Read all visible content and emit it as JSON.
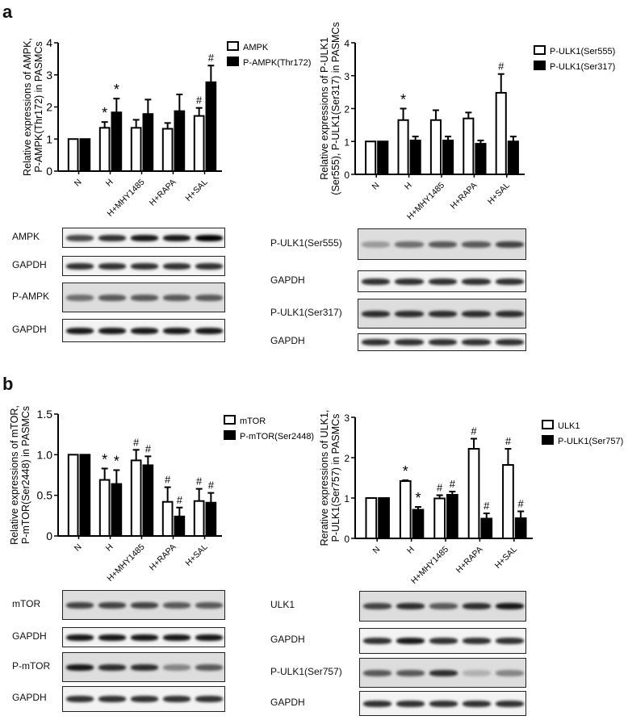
{
  "panels": {
    "a": "a",
    "b": "b"
  },
  "chart_data": [
    {
      "id": "a-left",
      "type": "bar",
      "ylabel": [
        "Relative expressions of AMPK,",
        "P-AMPK(Thr172) in PASMCs"
      ],
      "ylim": [
        0,
        4
      ],
      "yticks": [
        0,
        1,
        2,
        3,
        4
      ],
      "ytick_labels": [
        "0",
        "1",
        "2",
        "3",
        "4"
      ],
      "categories": [
        "N",
        "H",
        "H+MHY1485",
        "H+RAPA",
        "H+SAL"
      ],
      "series": [
        {
          "name": "AMPK",
          "fill": "#ffffff",
          "values": [
            1,
            1.35,
            1.35,
            1.32,
            1.72
          ],
          "errors": [
            0,
            0.18,
            0.25,
            0.18,
            0.25
          ],
          "annotations": [
            "",
            "*",
            "",
            "",
            "#"
          ]
        },
        {
          "name": "P-AMPK(Thr172)",
          "fill": "#000000",
          "values": [
            1,
            1.83,
            1.78,
            1.87,
            2.77
          ],
          "errors": [
            0,
            0.43,
            0.45,
            0.52,
            0.52
          ],
          "annotations": [
            "",
            "*",
            "",
            "",
            "#"
          ]
        }
      ]
    },
    {
      "id": "a-right",
      "type": "bar",
      "ylabel": [
        "Relative expressions of P-ULK1",
        "(Ser555), P-ULK1(Ser317) in PASMCs"
      ],
      "ylim": [
        0,
        4
      ],
      "yticks": [
        0,
        1,
        2,
        3,
        4
      ],
      "ytick_labels": [
        "0",
        "1",
        "2",
        "3",
        "4"
      ],
      "categories": [
        "N",
        "H",
        "H+MHY1485",
        "H+RAPA",
        "H+SAL"
      ],
      "series": [
        {
          "name": "P-ULK1(Ser555)",
          "fill": "#ffffff",
          "values": [
            1,
            1.65,
            1.65,
            1.7,
            2.48
          ],
          "errors": [
            0,
            0.35,
            0.3,
            0.18,
            0.57
          ],
          "annotations": [
            "",
            "*",
            "",
            "",
            "#"
          ]
        },
        {
          "name": "P-ULK1(Ser317)",
          "fill": "#000000",
          "values": [
            1,
            1.03,
            1.03,
            0.93,
            1.0
          ],
          "errors": [
            0,
            0.12,
            0.12,
            0.1,
            0.15
          ],
          "annotations": [
            "",
            "",
            "",
            "",
            ""
          ]
        }
      ]
    },
    {
      "id": "b-left",
      "type": "bar",
      "ylabel": [
        "Relative expressions of mTOR,",
        "P-mTOR(Ser2448) in PASMCs"
      ],
      "ylim": [
        0,
        1.5
      ],
      "yticks": [
        0,
        0.5,
        1.0,
        1.5
      ],
      "ytick_labels": [
        "0",
        "0.5",
        "1.0",
        "1.5"
      ],
      "categories": [
        "N",
        "H",
        "H+MHY1485",
        "H+RAPA",
        "H+SAL"
      ],
      "series": [
        {
          "name": "mTOR",
          "fill": "#ffffff",
          "values": [
            1,
            0.69,
            0.93,
            0.42,
            0.43
          ],
          "errors": [
            0,
            0.14,
            0.13,
            0.18,
            0.15
          ],
          "annotations": [
            "",
            "*",
            "#",
            "#",
            "#"
          ]
        },
        {
          "name": "P-mTOR(Ser2448)",
          "fill": "#000000",
          "values": [
            1,
            0.64,
            0.87,
            0.24,
            0.41
          ],
          "errors": [
            0,
            0.17,
            0.11,
            0.11,
            0.12
          ],
          "annotations": [
            "",
            "*",
            "#",
            "#",
            "#"
          ]
        }
      ]
    },
    {
      "id": "b-right",
      "type": "bar",
      "ylabel": [
        "Rerative expressions of ULK1,",
        "P-ULK1(Ser757) in PASMCs"
      ],
      "ylim": [
        0,
        3
      ],
      "yticks": [
        0,
        1,
        2,
        3
      ],
      "ytick_labels": [
        "0",
        "1",
        "2",
        "3"
      ],
      "categories": [
        "N",
        "H",
        "H+MHY1485",
        "H+RAPA",
        "H+SAL"
      ],
      "series": [
        {
          "name": "ULK1",
          "fill": "#ffffff",
          "values": [
            1,
            1.42,
            0.99,
            2.22,
            1.82
          ],
          "errors": [
            0,
            0.02,
            0.08,
            0.25,
            0.4
          ],
          "annotations": [
            "",
            "*",
            "#",
            "#",
            "#"
          ]
        },
        {
          "name": "P-ULK1(Ser757)",
          "fill": "#000000",
          "values": [
            1,
            0.71,
            1.08,
            0.49,
            0.5
          ],
          "errors": [
            0,
            0.07,
            0.08,
            0.13,
            0.17
          ],
          "annotations": [
            "",
            "*",
            "#",
            "#",
            "#"
          ]
        }
      ]
    }
  ],
  "blots": [
    {
      "label": "AMPK"
    },
    {
      "label": "GAPDH"
    },
    {
      "label": "P-AMPK"
    },
    {
      "label": "GAPDH"
    },
    {
      "label": "P-ULK1(Ser555)"
    },
    {
      "label": "GAPDH"
    },
    {
      "label": "P-ULK1(Ser317)"
    },
    {
      "label": "GAPDH"
    },
    {
      "label": "mTOR"
    },
    {
      "label": "GAPDH"
    },
    {
      "label": "P-mTOR"
    },
    {
      "label": "GAPDH"
    },
    {
      "label": "ULK1"
    },
    {
      "label": "GAPDH"
    },
    {
      "label": "P-ULK1(Ser757)"
    },
    {
      "label": "GAPDH"
    }
  ]
}
